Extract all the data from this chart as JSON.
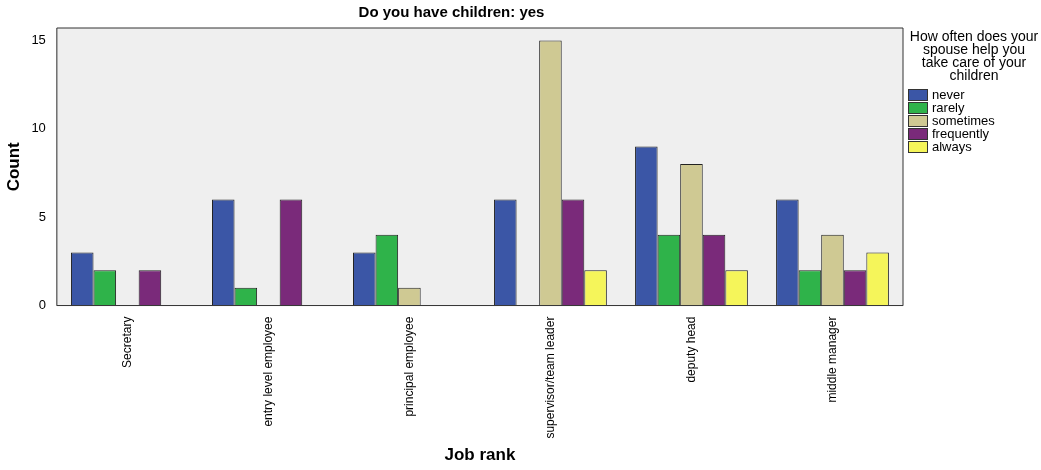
{
  "chart_data": {
    "type": "bar",
    "title": "Do you have children: yes",
    "xlabel": "Job rank",
    "ylabel": "Count",
    "legend_title": "How often does your spouse help you take care of your children",
    "legend": "right",
    "grid": false,
    "categories": [
      "Secretary",
      "entry level employee",
      "principal employee",
      "supervisor/team leader",
      "deputy head",
      "middle manager"
    ],
    "ylim": [
      0,
      15.7
    ],
    "yticks": [
      0,
      5,
      10,
      15
    ],
    "series": [
      {
        "name": "never",
        "color": "#3b56a6",
        "values": [
          3,
          6,
          3,
          6,
          9,
          6
        ]
      },
      {
        "name": "rarely",
        "color": "#2fb34a",
        "values": [
          2,
          1,
          4,
          null,
          4,
          2
        ]
      },
      {
        "name": "sometimes",
        "color": "#cfc993",
        "values": [
          null,
          null,
          1,
          15,
          8,
          4
        ]
      },
      {
        "name": "frequently",
        "color": "#7a2a7a",
        "values": [
          2,
          6,
          null,
          6,
          4,
          2
        ]
      },
      {
        "name": "always",
        "color": "#f5f55a",
        "values": [
          null,
          null,
          null,
          2,
          2,
          3
        ]
      }
    ]
  }
}
